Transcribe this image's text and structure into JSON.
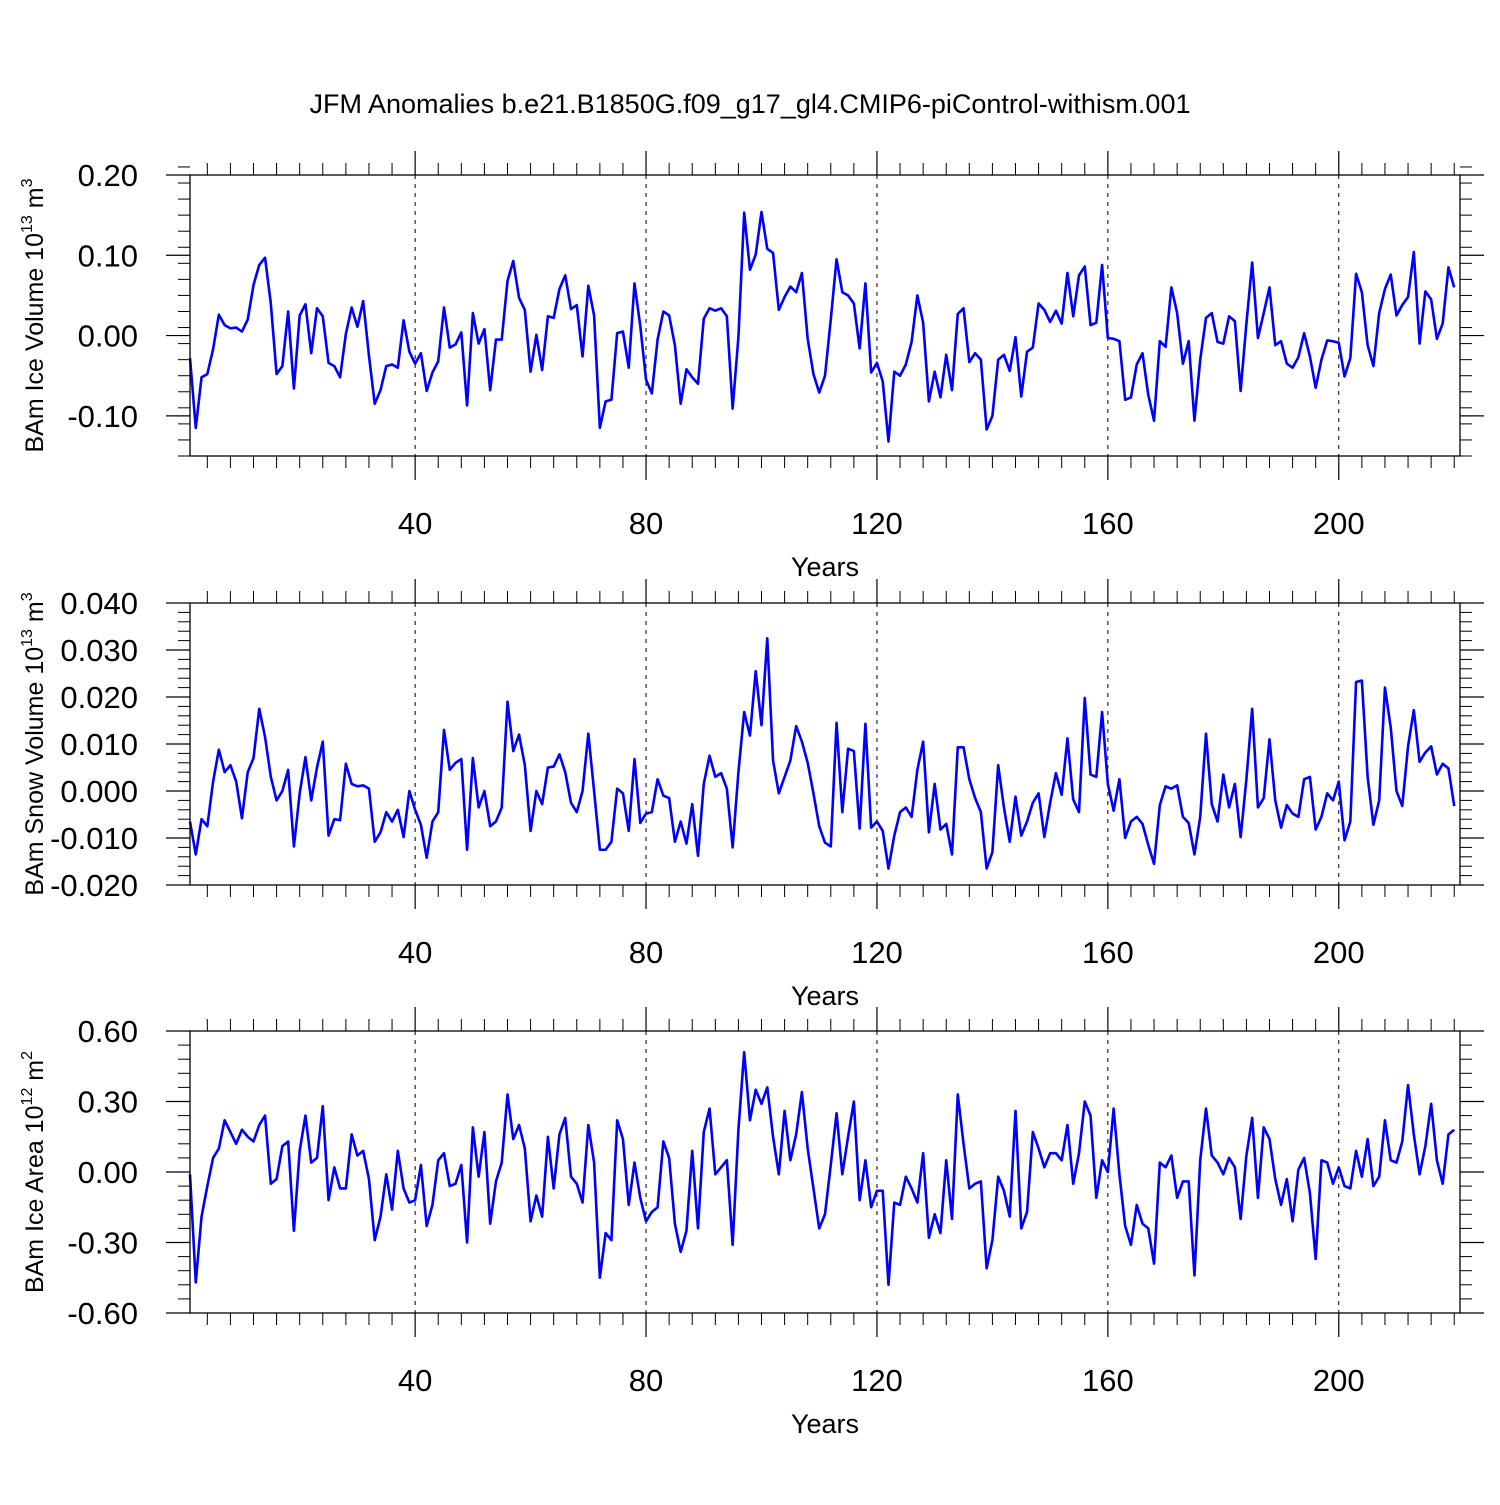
{
  "title": "JFM Anomalies b.e21.B1850G.f09_g17_gl4.CMIP6-piControl-withism.001",
  "line_color": "#0000ff",
  "chart_data": [
    {
      "type": "line",
      "title": "",
      "xlabel": "Years",
      "ylabel": {
        "text": "BAm Ice Volume 10",
        "exp": "13",
        "unit": " m",
        "unit_exp": "3"
      },
      "xlim": [
        1,
        221
      ],
      "ylim": [
        -0.15,
        0.2
      ],
      "xticks": [
        40,
        80,
        120,
        160,
        200
      ],
      "yticks": [
        -0.1,
        0.0,
        0.1,
        0.2
      ],
      "ytick_labels": [
        "-0.10",
        "0.00",
        "0.10",
        "0.20"
      ],
      "y_minor_step": 0.02,
      "x_minor_step": 4,
      "grid": "vertical-dashed",
      "x_start": 1,
      "series": [
        {
          "values": [
            -0.028,
            -0.115,
            -0.052,
            -0.048,
            -0.017,
            0.026,
            0.013,
            0.009,
            0.01,
            0.005,
            0.02,
            0.063,
            0.088,
            0.097,
            0.04,
            -0.048,
            -0.038,
            0.03,
            -0.066,
            0.025,
            0.039,
            -0.022,
            0.034,
            0.024,
            -0.034,
            -0.038,
            -0.052,
            0.002,
            0.035,
            0.011,
            0.043,
            -0.025,
            -0.085,
            -0.068,
            -0.038,
            -0.036,
            -0.04,
            0.019,
            -0.02,
            -0.035,
            -0.022,
            -0.069,
            -0.046,
            -0.032,
            0.035,
            -0.015,
            -0.011,
            0.004,
            -0.087,
            0.028,
            -0.01,
            0.008,
            -0.068,
            -0.005,
            -0.005,
            0.068,
            0.093,
            0.047,
            0.032,
            -0.045,
            0.001,
            -0.043,
            0.024,
            0.022,
            0.058,
            0.075,
            0.033,
            0.038,
            -0.026,
            0.062,
            0.025,
            -0.115,
            -0.082,
            -0.08,
            0.003,
            0.005,
            -0.04,
            0.065,
            0.012,
            -0.055,
            -0.072,
            -0.005,
            0.03,
            0.025,
            -0.012,
            -0.085,
            -0.042,
            -0.052,
            -0.06,
            0.021,
            0.034,
            0.031,
            0.034,
            0.024,
            -0.091,
            -0.002,
            0.153,
            0.082,
            0.101,
            0.154,
            0.108,
            0.103,
            0.032,
            0.048,
            0.061,
            0.054,
            0.078,
            -0.004,
            -0.048,
            -0.071,
            -0.05,
            0.02,
            0.095,
            0.054,
            0.05,
            0.04,
            -0.016,
            0.065,
            -0.046,
            -0.034,
            -0.057,
            -0.132,
            -0.045,
            -0.05,
            -0.036,
            -0.008,
            0.05,
            0.016,
            -0.082,
            -0.045,
            -0.077,
            -0.024,
            -0.068,
            0.027,
            0.034,
            -0.033,
            -0.022,
            -0.03,
            -0.117,
            -0.1,
            -0.03,
            -0.024,
            -0.044,
            -0.002,
            -0.076,
            -0.02,
            -0.015,
            0.04,
            0.032,
            0.017,
            0.031,
            0.015,
            0.078,
            0.024,
            0.075,
            0.086,
            0.013,
            0.016,
            0.088,
            -0.003,
            -0.004,
            -0.007,
            -0.08,
            -0.077,
            -0.036,
            -0.022,
            -0.074,
            -0.106,
            -0.007,
            -0.014,
            0.06,
            0.028,
            -0.035,
            -0.007,
            -0.106,
            -0.03,
            0.022,
            0.028,
            -0.008,
            -0.01,
            0.024,
            0.018,
            -0.069,
            0.015,
            0.091,
            -0.003,
            0.028,
            0.06,
            -0.012,
            -0.007,
            -0.035,
            -0.04,
            -0.027,
            0.003,
            -0.026,
            -0.065,
            -0.03,
            -0.006,
            -0.007,
            -0.009,
            -0.051,
            -0.028,
            0.077,
            0.054,
            -0.012,
            -0.038,
            0.028,
            0.058,
            0.076,
            0.025,
            0.038,
            0.048,
            0.104,
            -0.01,
            0.055,
            0.045,
            -0.004,
            0.015,
            0.085,
            0.06
          ]
        }
      ]
    },
    {
      "type": "line",
      "title": "",
      "xlabel": "Years",
      "ylabel": {
        "text": "BAm Snow Volume 10",
        "exp": "13",
        "unit": " m",
        "unit_exp": "3"
      },
      "xlim": [
        1,
        221
      ],
      "ylim": [
        -0.02,
        0.04
      ],
      "xticks": [
        40,
        80,
        120,
        160,
        200
      ],
      "yticks": [
        -0.02,
        -0.01,
        0.0,
        0.01,
        0.02,
        0.03,
        0.04
      ],
      "ytick_labels": [
        "-0.020",
        "-0.010",
        "0.000",
        "0.010",
        "0.020",
        "0.030",
        "0.040"
      ],
      "y_minor_step": 0.002,
      "x_minor_step": 4,
      "grid": "vertical-dashed",
      "x_start": 1,
      "series": [
        {
          "values": [
            -0.0065,
            -0.0135,
            -0.006,
            -0.0075,
            0.002,
            0.0088,
            0.004,
            0.0055,
            0.002,
            -0.0058,
            0.004,
            0.007,
            0.0175,
            0.0115,
            0.003,
            -0.002,
            0.0,
            0.0045,
            -0.0118,
            -0.0005,
            0.0072,
            -0.002,
            0.005,
            0.0105,
            -0.0095,
            -0.006,
            -0.0062,
            0.0058,
            0.0015,
            0.001,
            0.0012,
            0.0005,
            -0.0108,
            -0.0088,
            -0.0045,
            -0.0065,
            -0.004,
            -0.0098,
            0.0,
            -0.004,
            -0.0072,
            -0.0142,
            -0.0065,
            -0.0045,
            0.013,
            0.0045,
            0.006,
            0.0068,
            -0.0125,
            0.007,
            -0.0035,
            0.0,
            -0.0075,
            -0.0065,
            -0.0035,
            0.019,
            0.0085,
            0.012,
            0.0055,
            -0.0085,
            0.0,
            -0.0028,
            0.005,
            0.0052,
            0.0078,
            0.004,
            -0.0025,
            -0.0045,
            0.0,
            0.0122,
            0.0,
            -0.0125,
            -0.0125,
            -0.0108,
            0.0005,
            -0.0005,
            -0.0085,
            0.0068,
            -0.0068,
            -0.0048,
            -0.0045,
            0.0025,
            -0.001,
            -0.0015,
            -0.0108,
            -0.0065,
            -0.0112,
            -0.0028,
            -0.0138,
            0.0015,
            0.0075,
            0.003,
            0.0038,
            0.0005,
            -0.012,
            0.004,
            0.0168,
            0.0118,
            0.0255,
            0.014,
            0.0325,
            0.0065,
            -0.0005,
            0.003,
            0.0065,
            0.0138,
            0.0105,
            0.006,
            -0.0005,
            -0.0075,
            -0.011,
            -0.0118,
            0.0145,
            -0.0045,
            0.009,
            0.0085,
            -0.008,
            0.0143,
            -0.0078,
            -0.0065,
            -0.0085,
            -0.0165,
            -0.0095,
            -0.0045,
            -0.0035,
            -0.0055,
            0.0045,
            0.0105,
            -0.0088,
            0.0015,
            -0.0082,
            -0.007,
            -0.0135,
            0.0093,
            0.0093,
            0.0025,
            -0.0015,
            -0.0045,
            -0.0165,
            -0.013,
            0.0055,
            -0.0035,
            -0.0108,
            -0.0012,
            -0.0095,
            -0.0065,
            -0.0025,
            -0.0005,
            -0.0098,
            -0.0025,
            0.0038,
            -0.0008,
            0.0112,
            -0.0018,
            -0.0045,
            0.0198,
            0.0035,
            0.003,
            0.0168,
            0.0015,
            -0.0042,
            0.0025,
            -0.01,
            -0.0065,
            -0.0055,
            -0.007,
            -0.0115,
            -0.0155,
            -0.003,
            0.001,
            0.0005,
            0.0012,
            -0.0055,
            -0.0068,
            -0.0135,
            -0.0055,
            0.0122,
            -0.0028,
            -0.0065,
            0.0035,
            -0.0035,
            0.0015,
            -0.0098,
            0.0025,
            0.0175,
            -0.0035,
            -0.0015,
            0.011,
            -0.002,
            -0.0078,
            -0.003,
            -0.0048,
            -0.0055,
            0.0025,
            0.003,
            -0.0082,
            -0.0055,
            -0.0005,
            -0.002,
            0.002,
            -0.0105,
            -0.0065,
            0.0232,
            0.0235,
            0.003,
            -0.0072,
            -0.002,
            0.022,
            0.0135,
            0.0,
            -0.0032,
            0.0095,
            0.0172,
            0.0062,
            0.0082,
            0.0095,
            0.0035,
            0.0058,
            0.0048,
            -0.0032
          ]
        }
      ]
    },
    {
      "type": "line",
      "title": "",
      "xlabel": "Years",
      "ylabel": {
        "text": "BAm Ice Area 10",
        "exp": "12",
        "unit": " m",
        "unit_exp": "2"
      },
      "xlim": [
        1,
        221
      ],
      "ylim": [
        -0.6,
        0.6
      ],
      "xticks": [
        40,
        80,
        120,
        160,
        200
      ],
      "yticks": [
        -0.6,
        -0.3,
        0.0,
        0.3,
        0.6
      ],
      "ytick_labels": [
        "-0.60",
        "-0.30",
        "0.00",
        "0.30",
        "0.60"
      ],
      "y_minor_step": 0.06,
      "x_minor_step": 4,
      "grid": "vertical-dashed",
      "x_start": 1,
      "series": [
        {
          "values": [
            -0.01,
            -0.47,
            -0.19,
            -0.06,
            0.06,
            0.1,
            0.22,
            0.17,
            0.12,
            0.18,
            0.15,
            0.13,
            0.2,
            0.24,
            -0.05,
            -0.03,
            0.11,
            0.13,
            -0.25,
            0.09,
            0.24,
            0.04,
            0.06,
            0.28,
            -0.12,
            0.02,
            -0.07,
            -0.07,
            0.16,
            0.07,
            0.09,
            -0.03,
            -0.29,
            -0.19,
            -0.01,
            -0.16,
            0.09,
            -0.07,
            -0.13,
            -0.12,
            0.03,
            -0.23,
            -0.14,
            0.05,
            0.08,
            -0.06,
            -0.05,
            0.03,
            -0.3,
            0.19,
            -0.02,
            0.17,
            -0.22,
            -0.04,
            0.04,
            0.33,
            0.14,
            0.2,
            0.1,
            -0.21,
            -0.1,
            -0.19,
            0.15,
            -0.07,
            0.16,
            0.23,
            -0.02,
            -0.05,
            -0.13,
            0.2,
            0.04,
            -0.45,
            -0.26,
            -0.29,
            0.22,
            0.14,
            -0.14,
            0.04,
            -0.11,
            -0.21,
            -0.17,
            -0.15,
            0.13,
            0.06,
            -0.22,
            -0.34,
            -0.25,
            0.09,
            -0.24,
            0.17,
            0.27,
            -0.01,
            0.02,
            0.05,
            -0.31,
            0.18,
            0.51,
            0.22,
            0.35,
            0.29,
            0.36,
            0.15,
            -0.01,
            0.26,
            0.05,
            0.16,
            0.34,
            0.1,
            -0.07,
            -0.24,
            -0.18,
            0.03,
            0.25,
            -0.01,
            0.15,
            0.3,
            -0.12,
            0.05,
            -0.15,
            -0.08,
            -0.08,
            -0.48,
            -0.13,
            -0.14,
            -0.02,
            -0.07,
            -0.13,
            0.08,
            -0.28,
            -0.18,
            -0.26,
            0.05,
            -0.2,
            0.33,
            0.12,
            -0.07,
            -0.05,
            -0.04,
            -0.41,
            -0.29,
            -0.02,
            -0.08,
            -0.19,
            0.26,
            -0.24,
            -0.17,
            0.17,
            0.1,
            0.02,
            0.08,
            0.08,
            0.05,
            0.2,
            -0.05,
            0.08,
            0.3,
            0.24,
            -0.11,
            0.05,
            0.0,
            0.27,
            -0.01,
            -0.23,
            -0.31,
            -0.14,
            -0.22,
            -0.24,
            -0.39,
            0.04,
            0.02,
            0.07,
            -0.11,
            -0.04,
            -0.04,
            -0.44,
            0.05,
            0.27,
            0.07,
            0.04,
            -0.01,
            0.06,
            0.02,
            -0.2,
            0.07,
            0.23,
            -0.11,
            0.19,
            0.14,
            -0.03,
            -0.14,
            -0.03,
            -0.21,
            0.01,
            0.06,
            -0.09,
            -0.37,
            0.05,
            0.04,
            -0.05,
            0.02,
            -0.06,
            -0.07,
            0.09,
            -0.02,
            0.14,
            -0.06,
            -0.02,
            0.22,
            0.05,
            0.04,
            0.13,
            0.37,
            0.16,
            -0.01,
            0.11,
            0.29,
            0.05,
            -0.05,
            0.16,
            0.18
          ]
        }
      ]
    }
  ]
}
